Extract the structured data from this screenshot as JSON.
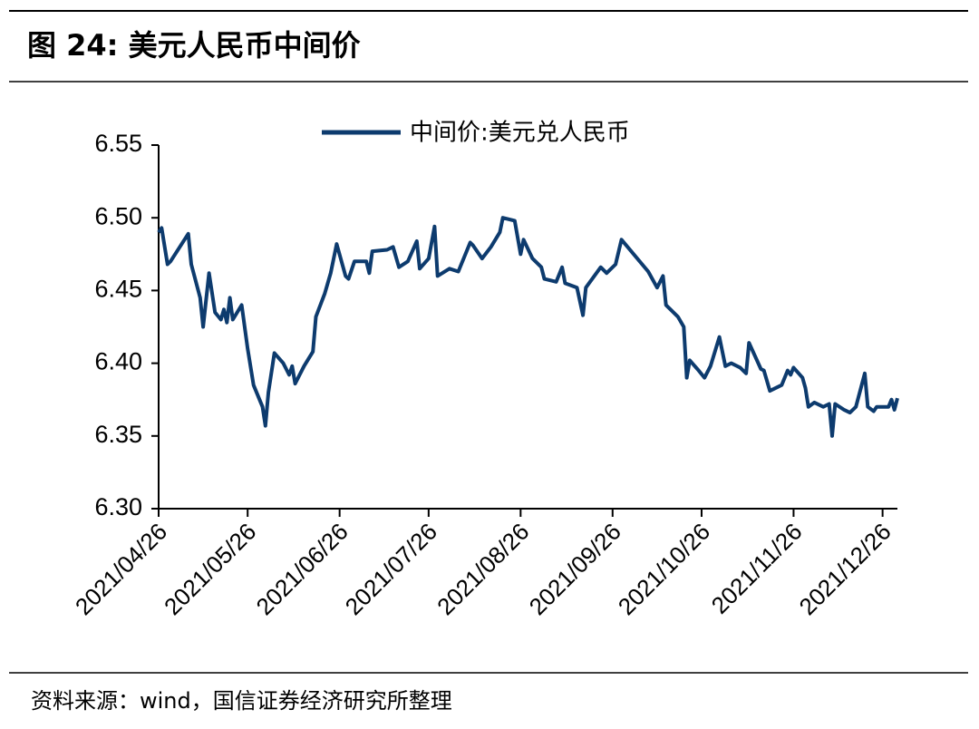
{
  "chart_data": {
    "type": "line",
    "title": "图 24:  美元人民币中间价",
    "source": "资料来源：wind，国信证券经济研究所整理",
    "xlim": [
      "2021/04/26",
      "2021/12/31"
    ],
    "xticks": [
      "2021/04/26",
      "2021/05/26",
      "2021/06/26",
      "2021/07/26",
      "2021/08/26",
      "2021/09/26",
      "2021/10/26",
      "2021/11/26",
      "2021/12/26"
    ],
    "ylim": [
      6.3,
      6.55
    ],
    "yticks": [
      {
        "value": 6.3,
        "label": "6.30"
      },
      6.35,
      {
        "value": 6.4,
        "label": "6.40"
      },
      6.45,
      {
        "value": 6.5,
        "label": "6.50"
      },
      6.55
    ],
    "grid": false,
    "legend": "top",
    "x": [
      "2021/04/26",
      "2021/04/27",
      "2021/04/29",
      "2021/04/30",
      "2021/05/06",
      "2021/05/07",
      "2021/05/10",
      "2021/05/11",
      "2021/05/13",
      "2021/05/15",
      "2021/05/17",
      "2021/05/18",
      "2021/05/19",
      "2021/05/20",
      "2021/05/21",
      "2021/05/24",
      "2021/05/26",
      "2021/05/28",
      "2021/05/31",
      "2021/06/01",
      "2021/06/02",
      "2021/06/04",
      "2021/06/07",
      "2021/06/09",
      "2021/06/10",
      "2021/06/11",
      "2021/06/14",
      "2021/06/17",
      "2021/06/18",
      "2021/06/21",
      "2021/06/23",
      "2021/06/25",
      "2021/06/28",
      "2021/06/29",
      "2021/07/01",
      "2021/07/05",
      "2021/07/06",
      "2021/07/07",
      "2021/07/12",
      "2021/07/14",
      "2021/07/16",
      "2021/07/19",
      "2021/07/22",
      "2021/07/23",
      "2021/07/26",
      "2021/07/28",
      "2021/07/29",
      "2021/08/02",
      "2021/08/05",
      "2021/08/09",
      "2021/08/10",
      "2021/08/13",
      "2021/08/16",
      "2021/08/19",
      "2021/08/20",
      "2021/08/24",
      "2021/08/26",
      "2021/08/27",
      "2021/08/30",
      "2021/09/02",
      "2021/09/03",
      "2021/09/07",
      "2021/09/09",
      "2021/09/10",
      "2021/09/14",
      "2021/09/16",
      "2021/09/17",
      "2021/09/22",
      "2021/09/24",
      "2021/09/27",
      "2021/09/29",
      "2021/10/08",
      "2021/10/11",
      "2021/10/13",
      "2021/10/14",
      "2021/10/18",
      "2021/10/20",
      "2021/10/21",
      "2021/10/22",
      "2021/10/25",
      "2021/10/27",
      "2021/10/29",
      "2021/11/01",
      "2021/11/03",
      "2021/11/05",
      "2021/11/08",
      "2021/11/10",
      "2021/11/11",
      "2021/11/15",
      "2021/11/16",
      "2021/11/18",
      "2021/11/22",
      "2021/11/24",
      "2021/11/25",
      "2021/11/26",
      "2021/11/29",
      "2021/11/30",
      "2021/12/01",
      "2021/12/03",
      "2021/12/06",
      "2021/12/08",
      "2021/12/09",
      "2021/12/10",
      "2021/12/13",
      "2021/12/15",
      "2021/12/17",
      "2021/12/20",
      "2021/12/21",
      "2021/12/23",
      "2021/12/24",
      "2021/12/28",
      "2021/12/29",
      "2021/12/30",
      "2021/12/31"
    ],
    "series": [
      {
        "name": "中间价:美元兑人民币",
        "color": "#0d3b6e",
        "values": [
          6.49,
          6.493,
          6.468,
          6.47,
          6.489,
          6.468,
          6.445,
          6.425,
          6.462,
          6.435,
          6.43,
          6.437,
          6.428,
          6.445,
          6.43,
          6.44,
          6.41,
          6.385,
          6.37,
          6.357,
          6.38,
          6.407,
          6.4,
          6.392,
          6.398,
          6.386,
          6.398,
          6.408,
          6.432,
          6.448,
          6.462,
          6.482,
          6.46,
          6.458,
          6.47,
          6.47,
          6.462,
          6.477,
          6.478,
          6.48,
          6.466,
          6.47,
          6.484,
          6.465,
          6.472,
          6.494,
          6.46,
          6.465,
          6.463,
          6.483,
          6.481,
          6.472,
          6.48,
          6.49,
          6.5,
          6.498,
          6.475,
          6.485,
          6.472,
          6.466,
          6.458,
          6.456,
          6.466,
          6.455,
          6.452,
          6.433,
          6.452,
          6.466,
          6.462,
          6.468,
          6.485,
          6.463,
          6.452,
          6.46,
          6.44,
          6.432,
          6.425,
          6.39,
          6.402,
          6.395,
          6.39,
          6.398,
          6.418,
          6.398,
          6.4,
          6.397,
          6.393,
          6.414,
          6.396,
          6.395,
          6.381,
          6.385,
          6.395,
          6.392,
          6.397,
          6.39,
          6.383,
          6.37,
          6.373,
          6.37,
          6.372,
          6.35,
          6.372,
          6.368,
          6.366,
          6.37,
          6.393,
          6.37,
          6.367,
          6.37,
          6.37,
          6.375,
          6.368,
          6.376
        ]
      }
    ]
  }
}
